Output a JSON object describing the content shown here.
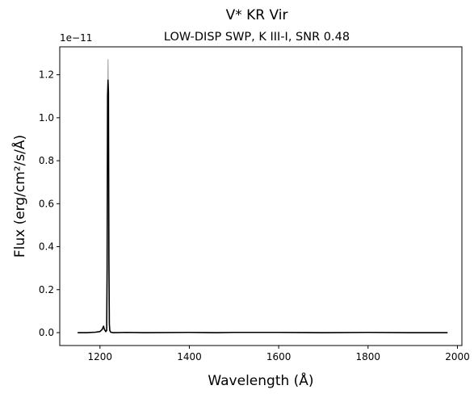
{
  "chart_data": {
    "type": "line",
    "title": "V* KR Vir",
    "subtitle": "LOW-DISP SWP, K III-I, SNR 0.48",
    "xlabel": "Wavelength (Å)",
    "ylabel": "Flux (erg/cm²/s/Å)",
    "y_offset_label": "1e−11",
    "xlim": [
      1110,
      2010
    ],
    "ylim": [
      -0.06,
      1.33
    ],
    "x_ticks": [
      1200,
      1400,
      1600,
      1800,
      2000
    ],
    "x_tick_labels": [
      "1200",
      "1400",
      "1600",
      "1800",
      "2000"
    ],
    "y_ticks": [
      0.0,
      0.2,
      0.4,
      0.6,
      0.8,
      1.0,
      1.2
    ],
    "y_tick_labels": [
      "0.0",
      "0.2",
      "0.4",
      "0.6",
      "0.8",
      "1.0",
      "1.2"
    ],
    "grid": false,
    "series": [
      {
        "color": "#000000",
        "x": [
          1150,
          1170,
          1190,
          1200,
          1205,
          1208,
          1210,
          1213,
          1215,
          1216,
          1217,
          1218,
          1219,
          1220,
          1221,
          1222,
          1224,
          1230,
          1260,
          1300,
          1400,
          1460,
          1500,
          1600,
          1700,
          1800,
          1900,
          1978
        ],
        "y": [
          0.0,
          0.0,
          0.002,
          0.005,
          0.015,
          0.03,
          0.015,
          0.005,
          0.01,
          0.3,
          1.1,
          1.175,
          1.12,
          0.35,
          0.04,
          0.01,
          0.002,
          0.0,
          0.001,
          0.0,
          0.001,
          0.0,
          0.001,
          0.001,
          0.0,
          0.001,
          0.0,
          0.0
        ]
      },
      {
        "color": "#aaaaaa",
        "x": [
          1217.5,
          1218,
          1218.5
        ],
        "y": [
          1.175,
          1.27,
          1.175
        ]
      }
    ]
  }
}
